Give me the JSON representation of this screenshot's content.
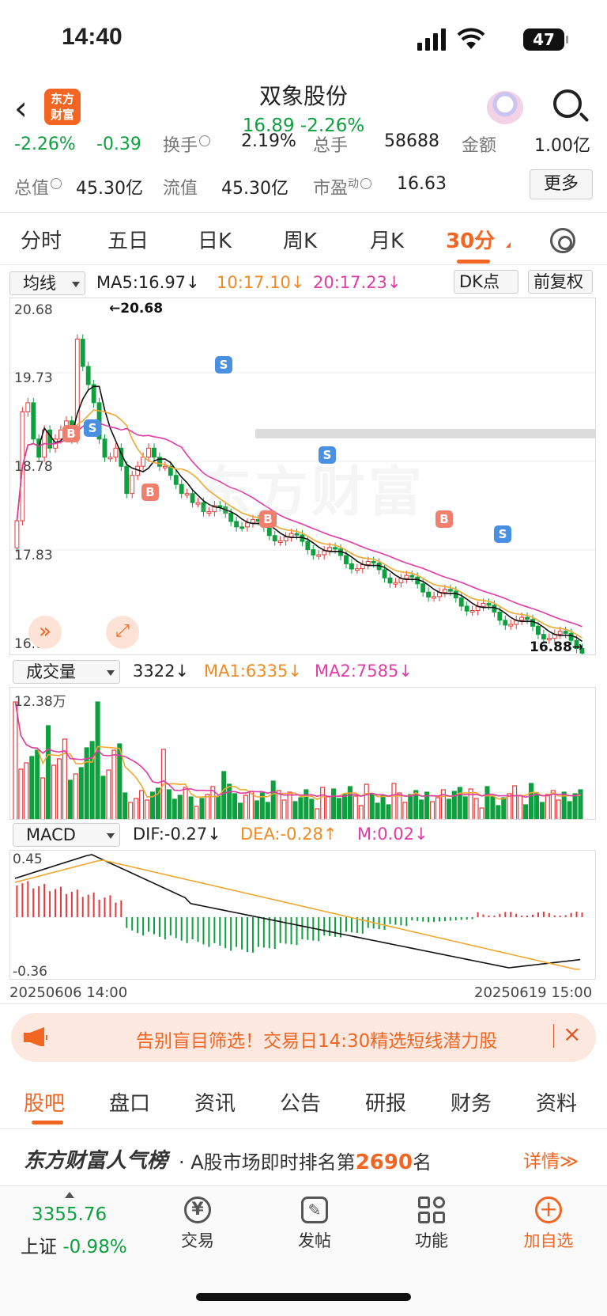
{
  "status": {
    "time": "14:40",
    "battery": "47"
  },
  "header": {
    "logo_text": "东方\n财富",
    "title": "双象股份",
    "price_line": "16.89  -2.26%"
  },
  "quote": {
    "row1": {
      "change_pct": "-2.26%",
      "change": "-0.39",
      "turnover_label": "换手",
      "turnover": "2.19%",
      "volume_label": "总手",
      "volume": "58688",
      "amount_label": "金额",
      "amount": "1.00亿"
    },
    "row2": {
      "mkt_cap_label": "总值",
      "mkt_cap": "45.30亿",
      "float_label": "流值",
      "float": "45.30亿",
      "pe_label": "市盈",
      "pe_sup": "动",
      "pe": "16.63"
    },
    "more": "更多"
  },
  "period_tabs": [
    "分时",
    "五日",
    "日K",
    "周K",
    "月K",
    "30分"
  ],
  "main_chart": {
    "selector": "均线",
    "ma5": "MA5:16.97↓",
    "ma10": "10:17.10↓",
    "ma20": "20:17.23↓",
    "dk": "DK点",
    "fq": "前复权",
    "y_top": "20.68",
    "y2": "19.73",
    "y3": "18.78",
    "y4": "17.83",
    "y_bottom": "16.88",
    "high_mark": "←20.68",
    "low_mark": "16.88→",
    "watermark": "东方财富",
    "signals": [
      "B",
      "S",
      "B",
      "S",
      "B",
      "S",
      "B",
      "S"
    ]
  },
  "volume_chart": {
    "selector": "成交量",
    "vol": "3322↓",
    "ma1": "MA1:6335↓",
    "ma2": "MA2:7585↓",
    "y_top": "12.38万"
  },
  "macd_chart": {
    "selector": "MACD",
    "dif": "DIF:-0.27↓",
    "dea": "DEA:-0.28↑",
    "m": "M:0.02↓",
    "y_top": "0.45",
    "y_bottom": "-0.36",
    "date_start": "20250606 14:00",
    "date_end": "20250619 15:00"
  },
  "banner": {
    "text": "告别盲目筛选！交易日14:30精选短线潜力股",
    "close": "×"
  },
  "bottom_tabs": [
    "股吧",
    "盘口",
    "资讯",
    "公告",
    "研报",
    "财务",
    "资料"
  ],
  "rank": {
    "title": "东方财富人气榜",
    "prefix": "· A股市场即时排名第",
    "num": "2690",
    "suffix": "名",
    "detail": "详情≫"
  },
  "nav": {
    "index_value": "3355.76",
    "index_name": "上证",
    "index_change": "-0.98%",
    "trade": "交易",
    "post": "发帖",
    "func": "功能",
    "add": "加自选"
  },
  "colors": {
    "accent": "#f26522",
    "up": "#e4393c",
    "down": "#0e9f3e",
    "ma10": "#f0a830",
    "ma20": "#e23aa6"
  }
}
